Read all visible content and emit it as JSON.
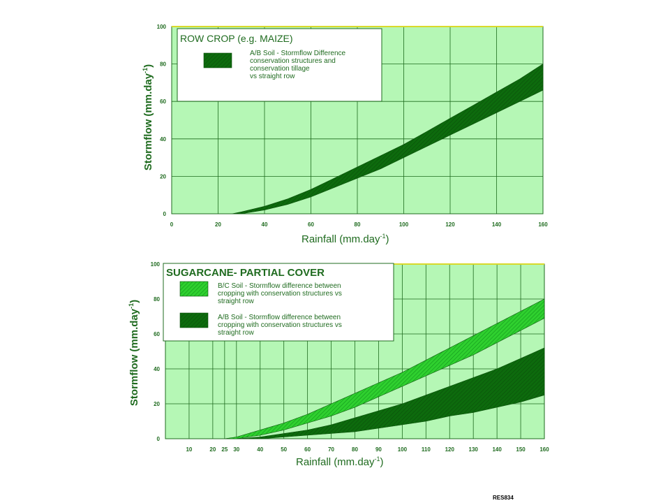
{
  "chart_data": [
    {
      "type": "area",
      "xticks": [
        0,
        20,
        40,
        60,
        80,
        100,
        120,
        140,
        160
      ],
      "yticks": [
        0,
        20,
        40,
        60,
        80,
        100
      ],
      "xlim": [
        0,
        160
      ],
      "ylim": [
        0,
        100
      ],
      "xlabel": "Rainfall (mm.day",
      "xlabel_sup": "-1",
      "xlabel_end": ")",
      "ylabel": "Stormflow (mm.day",
      "ylabel_sup": "-1",
      "ylabel_end": ")",
      "grid": true,
      "legend_position": "top-left",
      "legend_title": "ROW CROP (e.g. MAIZE)",
      "series": [
        {
          "name": "A/B Soil - Stormflow Difference conservation structures and conservation tillage vs straight row",
          "legend_lines": [
            "A/B Soil - Stormflow Difference",
            "conservation structures and",
            "conservation tillage",
            "vs straight row"
          ],
          "color": "#0d6b0d",
          "x": [
            26,
            30,
            40,
            50,
            60,
            70,
            80,
            90,
            100,
            110,
            120,
            130,
            140,
            150,
            160
          ],
          "upper": [
            0,
            1,
            4,
            8,
            13,
            19,
            25,
            31,
            37,
            44,
            51,
            58,
            65,
            72,
            80
          ],
          "lower": [
            0,
            0,
            2,
            5,
            9,
            14,
            19,
            24,
            30,
            36,
            42,
            48,
            54,
            60,
            66
          ]
        }
      ]
    },
    {
      "type": "area",
      "xticks": [
        10,
        20,
        25,
        30,
        40,
        50,
        60,
        70,
        80,
        90,
        100,
        110,
        120,
        130,
        140,
        150,
        160
      ],
      "yticks": [
        0,
        20,
        40,
        60,
        80,
        100
      ],
      "xlim": [
        0,
        160
      ],
      "ylim": [
        0,
        100
      ],
      "xlabel": "Rainfall (mm.day",
      "xlabel_sup": "-1",
      "xlabel_end": ")",
      "ylabel": "Stormflow (mm.day",
      "ylabel_sup": "-1",
      "ylabel_end": ")",
      "grid": true,
      "legend_position": "top-left",
      "legend_title": "SUGARCANE- PARTIAL COVER",
      "series": [
        {
          "name": "B/C Soil - Stormflow difference between cropping with conservation structures vs straight row",
          "legend_lines": [
            "B/C Soil - Stormflow difference between",
            "cropping with conservation structures vs",
            "straight row"
          ],
          "color": "#22c222",
          "x": [
            25,
            30,
            40,
            50,
            60,
            70,
            80,
            90,
            100,
            110,
            120,
            130,
            140,
            150,
            160
          ],
          "upper": [
            0,
            1,
            5,
            9,
            14,
            20,
            26,
            32,
            38,
            45,
            52,
            59,
            66,
            73,
            80
          ],
          "lower": [
            0,
            0,
            2,
            5,
            9,
            13,
            18,
            24,
            30,
            36,
            42,
            48,
            55,
            62,
            69
          ]
        },
        {
          "name": "A/B Soil - Stormflow difference between cropping with conservation structures vs straight row",
          "legend_lines": [
            "A/B Soil - Stormflow difference between",
            "cropping with conservation structures vs",
            "straight row"
          ],
          "color": "#0d6b0d",
          "x": [
            30,
            40,
            50,
            60,
            70,
            80,
            90,
            100,
            110,
            120,
            130,
            140,
            150,
            160
          ],
          "upper": [
            0,
            1,
            3,
            5,
            8,
            12,
            16,
            20,
            25,
            30,
            35,
            40,
            46,
            52
          ],
          "lower": [
            0,
            0,
            1,
            2,
            3,
            4,
            6,
            8,
            10,
            13,
            15,
            18,
            21,
            25
          ]
        }
      ]
    }
  ],
  "footer": "RES834"
}
